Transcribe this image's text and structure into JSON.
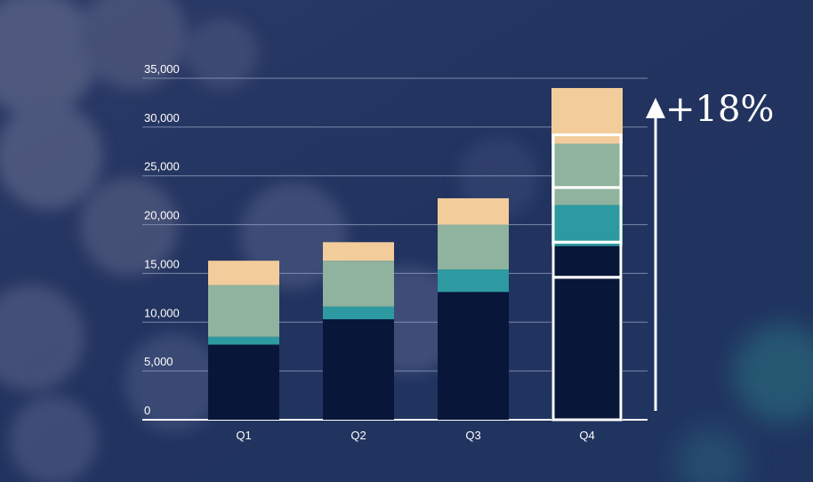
{
  "chart_data": {
    "type": "bar",
    "stacked": true,
    "categories": [
      "Q1",
      "Q2",
      "Q3",
      "Q4"
    ],
    "series": [
      {
        "values": [
          7700,
          10300,
          13100,
          17800
        ]
      },
      {
        "values": [
          800,
          1300,
          2300,
          4200
        ]
      },
      {
        "values": [
          5300,
          4700,
          4600,
          6300
        ]
      },
      {
        "values": [
          2500,
          1900,
          2700,
          5700
        ]
      }
    ],
    "ylim": [
      0,
      35000
    ],
    "yticks": [
      0,
      5000,
      10000,
      15000,
      20000,
      25000,
      30000,
      35000
    ],
    "ytick_labels": [
      "0",
      "5,000",
      "10,000",
      "15,000",
      "20,000",
      "25,000",
      "30,000",
      "35,000"
    ],
    "grid": true,
    "highlight_category": "Q4",
    "annotation": "+18%",
    "colors": {
      "series": [
        "#08163a",
        "#2c9aa0",
        "#8fb39e",
        "#f2cd9b"
      ],
      "highlight_outline": "#ffffff",
      "gridline": "#8a97b8",
      "axis": "#ffffff"
    }
  }
}
